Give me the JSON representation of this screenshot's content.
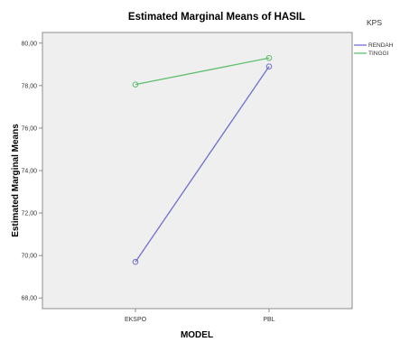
{
  "chart_data": {
    "type": "line",
    "title": "Estimated Marginal Means of HASIL",
    "xlabel": "MODEL",
    "ylabel": "Estimated Marginal Means",
    "categories": [
      "EKSPO",
      "PBL"
    ],
    "ylim": [
      67.5,
      80.5
    ],
    "yticks": [
      68,
      70,
      72,
      74,
      76,
      78,
      80
    ],
    "ytick_labels": [
      "68,00",
      "70,00",
      "72,00",
      "74,00",
      "76,00",
      "78,00",
      "80,00"
    ],
    "grid": false,
    "background": "#efefef",
    "legend": {
      "title": "KPS",
      "placement": "right",
      "entries": [
        "RENDAH",
        "TINGGI"
      ]
    },
    "series": [
      {
        "name": "RENDAH",
        "color": "#6f6fcf",
        "values": [
          69.7,
          78.9
        ]
      },
      {
        "name": "TINGGI",
        "color": "#5cbf6e",
        "values": [
          78.05,
          79.3
        ]
      }
    ]
  }
}
